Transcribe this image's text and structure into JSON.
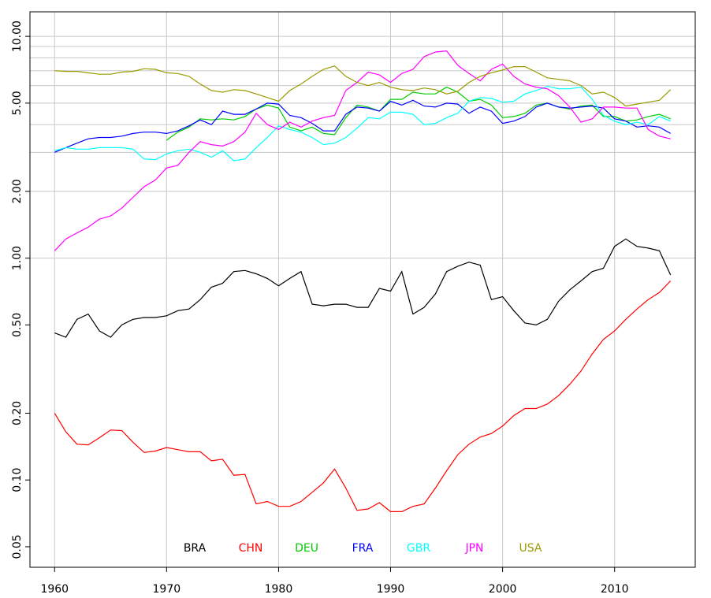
{
  "chart_data": {
    "type": "line",
    "log_y": true,
    "grid": true,
    "legend": "bottom",
    "x": [
      1960,
      1961,
      1962,
      1963,
      1964,
      1965,
      1966,
      1967,
      1968,
      1969,
      1970,
      1971,
      1972,
      1973,
      1974,
      1975,
      1976,
      1977,
      1978,
      1979,
      1980,
      1981,
      1982,
      1983,
      1984,
      1985,
      1986,
      1987,
      1988,
      1989,
      1990,
      1991,
      1992,
      1993,
      1994,
      1995,
      1996,
      1997,
      1998,
      1999,
      2000,
      2001,
      2002,
      2003,
      2004,
      2005,
      2006,
      2007,
      2008,
      2009,
      2010,
      2011,
      2012,
      2013,
      2014,
      2015
    ],
    "xlim": [
      1957.8,
      2017.2
    ],
    "xticks": [
      1960,
      1970,
      1980,
      1990,
      2000,
      2010
    ],
    "ylim": [
      0.0404,
      12.9
    ],
    "yticks": [
      {
        "value": 0.05,
        "label": "0.05"
      },
      {
        "value": 0.1,
        "label": "0.10"
      },
      {
        "value": 0.2,
        "label": "0.20"
      },
      {
        "value": 0.5,
        "label": "0.50"
      },
      {
        "value": 1,
        "label": "1.00"
      },
      {
        "value": 2,
        "label": "2.00"
      },
      {
        "value": 5,
        "label": "5.00"
      },
      {
        "value": 10,
        "label": "10.00"
      }
    ],
    "ygrid": [
      1,
      2,
      3,
      4,
      5,
      6,
      7,
      8,
      9,
      10
    ],
    "series": [
      {
        "name": "BRA",
        "color": "#000000",
        "values": [
          0.46,
          0.44,
          0.53,
          0.56,
          0.47,
          0.44,
          0.5,
          0.53,
          0.54,
          0.54,
          0.55,
          0.58,
          0.59,
          0.65,
          0.74,
          0.77,
          0.87,
          0.88,
          0.85,
          0.81,
          0.75,
          0.81,
          0.87,
          0.62,
          0.61,
          0.62,
          0.62,
          0.6,
          0.6,
          0.73,
          0.71,
          0.87,
          0.56,
          0.6,
          0.69,
          0.87,
          0.92,
          0.96,
          0.93,
          0.65,
          0.67,
          0.58,
          0.51,
          0.5,
          0.53,
          0.64,
          0.72,
          0.79,
          0.87,
          0.9,
          1.13,
          1.22,
          1.13,
          1.11,
          1.08,
          0.84
        ]
      },
      {
        "name": "CHN",
        "color": "#ff0000",
        "values": [
          0.2,
          0.165,
          0.145,
          0.144,
          0.155,
          0.168,
          0.167,
          0.148,
          0.133,
          0.135,
          0.14,
          0.137,
          0.134,
          0.134,
          0.122,
          0.124,
          0.105,
          0.106,
          0.078,
          0.08,
          0.076,
          0.076,
          0.08,
          0.088,
          0.097,
          0.112,
          0.092,
          0.073,
          0.074,
          0.079,
          0.072,
          0.072,
          0.076,
          0.078,
          0.092,
          0.11,
          0.13,
          0.145,
          0.156,
          0.162,
          0.175,
          0.195,
          0.21,
          0.21,
          0.22,
          0.24,
          0.27,
          0.31,
          0.37,
          0.43,
          0.47,
          0.53,
          0.59,
          0.65,
          0.7,
          0.79
        ]
      },
      {
        "name": "DEU",
        "color": "#00cd00",
        "values": [
          null,
          null,
          null,
          null,
          null,
          null,
          null,
          null,
          null,
          null,
          3.4,
          3.7,
          3.9,
          4.25,
          4.2,
          4.25,
          4.2,
          4.35,
          4.7,
          4.9,
          4.75,
          3.9,
          3.75,
          3.9,
          3.65,
          3.6,
          4.3,
          4.9,
          4.8,
          4.6,
          5.2,
          5.2,
          5.6,
          5.5,
          5.5,
          5.9,
          5.6,
          5.1,
          5.2,
          4.9,
          4.3,
          4.35,
          4.5,
          4.9,
          5.0,
          4.8,
          4.7,
          4.85,
          4.9,
          4.35,
          4.35,
          4.15,
          4.2,
          4.35,
          4.45,
          4.25
        ]
      },
      {
        "name": "FRA",
        "color": "#0000ff",
        "values": [
          3.0,
          3.15,
          3.3,
          3.45,
          3.5,
          3.5,
          3.55,
          3.65,
          3.7,
          3.7,
          3.65,
          3.75,
          3.95,
          4.2,
          4.0,
          4.6,
          4.45,
          4.45,
          4.7,
          5.0,
          4.95,
          4.4,
          4.3,
          4.05,
          3.75,
          3.75,
          4.45,
          4.8,
          4.75,
          4.6,
          5.1,
          4.9,
          5.15,
          4.85,
          4.8,
          5.0,
          4.95,
          4.5,
          4.8,
          4.6,
          4.05,
          4.15,
          4.35,
          4.8,
          5.0,
          4.8,
          4.75,
          4.8,
          4.85,
          4.75,
          4.25,
          4.15,
          3.9,
          3.95,
          3.9,
          3.65
        ]
      },
      {
        "name": "GBR",
        "color": "#00ffff",
        "values": [
          3.05,
          3.15,
          3.1,
          3.1,
          3.15,
          3.15,
          3.15,
          3.1,
          2.8,
          2.78,
          2.95,
          3.05,
          3.1,
          3.0,
          2.85,
          3.05,
          2.75,
          2.8,
          3.15,
          3.5,
          3.95,
          3.8,
          3.7,
          3.5,
          3.25,
          3.3,
          3.5,
          3.85,
          4.3,
          4.25,
          4.55,
          4.55,
          4.45,
          4.0,
          4.05,
          4.3,
          4.5,
          5.1,
          5.3,
          5.25,
          5.05,
          5.1,
          5.5,
          5.7,
          5.95,
          5.8,
          5.8,
          5.9,
          5.2,
          4.4,
          4.15,
          4.0,
          4.1,
          4.0,
          4.35,
          4.15
        ]
      },
      {
        "name": "JPN",
        "color": "#ff00ff",
        "values": [
          1.08,
          1.22,
          1.3,
          1.38,
          1.5,
          1.55,
          1.68,
          1.88,
          2.1,
          2.25,
          2.55,
          2.62,
          3.0,
          3.35,
          3.25,
          3.2,
          3.35,
          3.7,
          4.5,
          4.0,
          3.8,
          4.1,
          3.9,
          4.15,
          4.3,
          4.4,
          5.7,
          6.2,
          6.9,
          6.7,
          6.2,
          6.8,
          7.1,
          8.1,
          8.5,
          8.6,
          7.4,
          6.8,
          6.3,
          7.1,
          7.5,
          6.6,
          6.1,
          5.9,
          5.8,
          5.4,
          4.8,
          4.1,
          4.25,
          4.8,
          4.8,
          4.75,
          4.75,
          3.8,
          3.55,
          3.45
        ]
      },
      {
        "name": "USA",
        "color": "#9a9a00",
        "values": [
          7.0,
          6.95,
          6.95,
          6.85,
          6.75,
          6.75,
          6.9,
          6.95,
          7.15,
          7.1,
          6.85,
          6.8,
          6.6,
          6.1,
          5.7,
          5.6,
          5.75,
          5.7,
          5.5,
          5.3,
          5.1,
          5.7,
          6.1,
          6.6,
          7.1,
          7.35,
          6.6,
          6.2,
          6.0,
          6.2,
          5.9,
          5.75,
          5.7,
          5.85,
          5.75,
          5.5,
          5.65,
          6.2,
          6.6,
          6.85,
          7.05,
          7.3,
          7.3,
          6.9,
          6.5,
          6.4,
          6.3,
          6.0,
          5.5,
          5.6,
          5.3,
          4.85,
          4.95,
          5.05,
          5.15,
          5.75
        ]
      }
    ]
  }
}
